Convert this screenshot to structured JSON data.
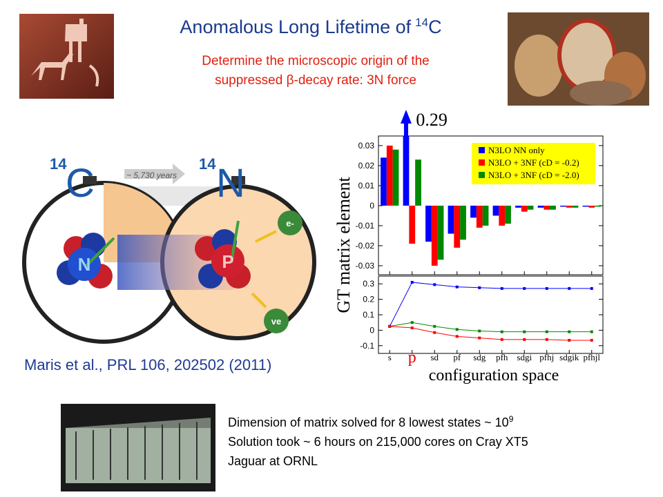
{
  "slide": {
    "title": {
      "text": "Anomalous Long Lifetime of",
      "superscript": "14",
      "element": "C"
    },
    "subtitle": [
      "Determine the microscopic origin of the",
      "suppressed β-decay rate: 3N force"
    ],
    "illustration": {
      "parent_mass": "14",
      "parent": "C",
      "daughter_mass": "14",
      "daughter": "N",
      "half_life": "~ 5,730 years",
      "neutron": "N",
      "proton": "P",
      "electron": "e-",
      "neutrino": "ve"
    },
    "citation": "Maris et al., PRL 106, 202502 (2011)",
    "notes": [
      {
        "text": "Dimension of matrix solved for 8 lowest states ~ 10",
        "superscript": "9"
      },
      {
        "text": "Solution took ~ 6 hours on 215,000 cores on Cray XT5"
      },
      {
        "text": "Jaguar at ORNL"
      }
    ]
  },
  "chart_data": [
    {
      "type": "bar",
      "ylabel": "GT matrix element",
      "ylim": [
        -0.0345,
        0.0348
      ],
      "yticks": [
        -0.03,
        -0.02,
        -0.01,
        0,
        0.01,
        0.02,
        0.03
      ],
      "legend": "top-right",
      "legend_color": "#ffff00",
      "series": [
        {
          "name": "N3LO NN only",
          "color": "#0000ff",
          "values": [
            0.024,
            0.29,
            -0.018,
            -0.014,
            -0.006,
            -0.005,
            -0.001,
            -0.001,
            -0.0005,
            -0.0005
          ],
          "value_labels": [
            null,
            "0.29",
            null,
            null,
            null,
            null,
            null,
            null,
            null,
            null
          ]
        },
        {
          "name": "N3LO + 3NF (cD = -0.2)",
          "color": "#ff0000",
          "values": [
            0.03,
            -0.019,
            -0.03,
            -0.021,
            -0.011,
            -0.01,
            -0.003,
            -0.002,
            -0.001,
            -0.001
          ]
        },
        {
          "name": "N3LO + 3NF (cD = -2.0)",
          "color": "#008800",
          "values": [
            0.028,
            0.023,
            -0.027,
            -0.017,
            -0.01,
            -0.009,
            -0.002,
            -0.002,
            -0.001,
            -0.0005
          ]
        }
      ]
    },
    {
      "type": "line",
      "xlabel": "configuration space",
      "categories": [
        "s",
        "p",
        "sd",
        "pf",
        "sdg",
        "pfh",
        "sdgi",
        "pfhj",
        "sdgik",
        "pfhjl"
      ],
      "ylim": [
        -0.15,
        0.35
      ],
      "yticks": [
        -0.1,
        0,
        0.1,
        0.2,
        0.3
      ],
      "series": [
        {
          "color": "#0000ff",
          "values": [
            0.025,
            0.31,
            0.295,
            0.28,
            0.275,
            0.27,
            0.27,
            0.27,
            0.27,
            0.27
          ]
        },
        {
          "color": "#008800",
          "values": [
            0.025,
            0.05,
            0.025,
            0.005,
            -0.005,
            -0.01,
            -0.01,
            -0.01,
            -0.01,
            -0.01
          ]
        },
        {
          "color": "#ff0000",
          "values": [
            0.025,
            0.015,
            -0.015,
            -0.04,
            -0.05,
            -0.06,
            -0.06,
            -0.06,
            -0.065,
            -0.065
          ]
        }
      ]
    }
  ]
}
